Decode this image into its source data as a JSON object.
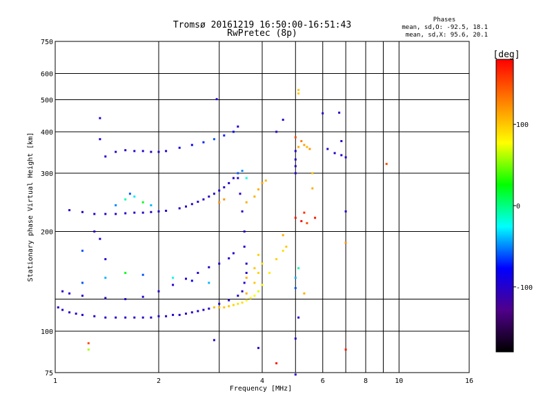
{
  "chart_data": {
    "type": "scatter",
    "title": "Tromsø 20161219 16:50:00-16:51:43",
    "subtitle": "RwPretec (8p)",
    "xlabel": "Frequency [MHz]",
    "ylabel": "Stationary phase Virtual Height [km]",
    "x_scale": "log",
    "y_scale": "log",
    "xlim": [
      1,
      16
    ],
    "ylim": [
      75,
      750
    ],
    "x_ticks": [
      1,
      2,
      4,
      6,
      8,
      10,
      16
    ],
    "x_tick_labels": [
      "1",
      "2",
      "4",
      "6",
      "8",
      "10",
      "16"
    ],
    "x_grid": [
      1,
      2,
      3,
      4,
      5,
      6,
      7,
      8,
      9,
      10,
      16
    ],
    "y_ticks": [
      75,
      100,
      200,
      300,
      400,
      500,
      600,
      750
    ],
    "y_tick_labels": [
      "75",
      "100",
      "200",
      "300",
      "400",
      "500",
      "600",
      "750"
    ],
    "y_grid": [
      75,
      100,
      125,
      200,
      300,
      400,
      500,
      600,
      750
    ],
    "grid": true,
    "stats": {
      "heading": "Phases",
      "line_o": "mean, sd,O: -92.5, 18.1",
      "line_x": "mean, sd,X:  95.6, 20.1"
    },
    "colorbar": {
      "label": "[deg]",
      "min": -180,
      "max": 180,
      "ticks": [
        100,
        0,
        -100
      ],
      "tick_labels": [
        "100",
        "0",
        "-100"
      ],
      "colors": [
        "#ff0000",
        "#ff8000",
        "#ffff00",
        "#00ff00",
        "#00ffff",
        "#0000ff",
        "#50008a",
        "#000000"
      ]
    },
    "series": [
      {
        "points": [
          [
            1.02,
            118,
            -100
          ],
          [
            1.05,
            116,
            -100
          ],
          [
            1.1,
            114,
            -100
          ],
          [
            1.15,
            113,
            -100
          ],
          [
            1.2,
            112,
            -100
          ],
          [
            1.3,
            111,
            -100
          ],
          [
            1.4,
            110,
            -100
          ],
          [
            1.5,
            110,
            -100
          ],
          [
            1.6,
            110,
            -100
          ],
          [
            1.7,
            110,
            -100
          ],
          [
            1.8,
            110,
            -100
          ],
          [
            1.9,
            110,
            -100
          ],
          [
            2.0,
            111,
            -100
          ],
          [
            2.1,
            111,
            -100
          ],
          [
            2.2,
            112,
            -100
          ],
          [
            2.3,
            112,
            -100
          ],
          [
            2.4,
            113,
            -100
          ],
          [
            2.5,
            114,
            -100
          ],
          [
            2.6,
            115,
            -100
          ],
          [
            2.7,
            116,
            -100
          ],
          [
            2.8,
            117,
            -100
          ],
          [
            2.9,
            118,
            105
          ],
          [
            3.0,
            118,
            105
          ],
          [
            3.1,
            118,
            100
          ],
          [
            3.2,
            119,
            100
          ],
          [
            3.3,
            120,
            95
          ],
          [
            3.4,
            121,
            90
          ],
          [
            3.5,
            122,
            90
          ],
          [
            3.6,
            124,
            85
          ],
          [
            3.7,
            126,
            80
          ],
          [
            3.8,
            128,
            75
          ],
          [
            3.9,
            132,
            70
          ],
          [
            4.0,
            138,
            80
          ],
          [
            3.0,
            121,
            -100
          ],
          [
            3.2,
            124,
            -100
          ],
          [
            3.4,
            128,
            -100
          ],
          [
            3.5,
            132,
            -100
          ],
          [
            3.55,
            140,
            -100
          ],
          [
            3.6,
            150,
            -100
          ],
          [
            3.6,
            160,
            -100
          ],
          [
            3.55,
            180,
            -100
          ],
          [
            3.55,
            200,
            -100
          ],
          [
            3.5,
            230,
            -100
          ],
          [
            3.45,
            260,
            -100
          ],
          [
            3.4,
            290,
            -100
          ],
          [
            1.05,
            132,
            -100
          ],
          [
            1.1,
            130,
            -100
          ],
          [
            1.2,
            128,
            -100
          ],
          [
            1.4,
            126,
            -100
          ],
          [
            1.6,
            125,
            -100
          ],
          [
            1.8,
            127,
            -100
          ],
          [
            2.0,
            132,
            -100
          ],
          [
            2.2,
            138,
            -100
          ],
          [
            2.4,
            144,
            -100
          ],
          [
            2.6,
            150,
            -100
          ],
          [
            2.8,
            156,
            -100
          ],
          [
            3.0,
            160,
            -100
          ],
          [
            3.2,
            166,
            -100
          ],
          [
            3.3,
            172,
            -100
          ],
          [
            1.2,
            140,
            -60
          ],
          [
            1.4,
            145,
            -40
          ],
          [
            1.6,
            150,
            20
          ],
          [
            1.8,
            148,
            -60
          ],
          [
            2.2,
            145,
            -20
          ],
          [
            2.5,
            142,
            -80
          ],
          [
            2.8,
            140,
            -40
          ],
          [
            3.6,
            130,
            110
          ],
          [
            3.8,
            140,
            100
          ],
          [
            3.9,
            150,
            95
          ],
          [
            4.0,
            160,
            90
          ],
          [
            4.2,
            150,
            85
          ],
          [
            4.4,
            165,
            95
          ],
          [
            4.6,
            175,
            90
          ],
          [
            4.7,
            180,
            100
          ],
          [
            4.6,
            195,
            110
          ],
          [
            3.6,
            145,
            110
          ],
          [
            3.8,
            155,
            100
          ],
          [
            3.9,
            170,
            95
          ],
          [
            1.1,
            232,
            -100
          ],
          [
            1.2,
            229,
            -100
          ],
          [
            1.3,
            226,
            -100
          ],
          [
            1.4,
            226,
            -100
          ],
          [
            1.5,
            226,
            -100
          ],
          [
            1.6,
            227,
            -100
          ],
          [
            1.7,
            228,
            -100
          ],
          [
            1.8,
            228,
            -100
          ],
          [
            1.9,
            229,
            -100
          ],
          [
            2.0,
            230,
            -100
          ],
          [
            2.1,
            231,
            -100
          ],
          [
            1.5,
            240,
            -50
          ],
          [
            1.6,
            250,
            -10
          ],
          [
            1.7,
            255,
            -30
          ],
          [
            1.8,
            245,
            20
          ],
          [
            1.9,
            240,
            -40
          ],
          [
            1.65,
            260,
            -60
          ],
          [
            2.3,
            235,
            -100
          ],
          [
            2.4,
            238,
            -100
          ],
          [
            2.5,
            242,
            -100
          ],
          [
            2.6,
            246,
            -100
          ],
          [
            2.7,
            250,
            -100
          ],
          [
            2.8,
            255,
            -100
          ],
          [
            2.9,
            260,
            -100
          ],
          [
            3.0,
            266,
            -100
          ],
          [
            3.1,
            272,
            -100
          ],
          [
            3.2,
            280,
            -100
          ],
          [
            3.3,
            290,
            -100
          ],
          [
            3.4,
            300,
            -60
          ],
          [
            3.5,
            305,
            -50
          ],
          [
            3.6,
            290,
            -20
          ],
          [
            3.6,
            245,
            110
          ],
          [
            3.8,
            255,
            110
          ],
          [
            3.9,
            268,
            110
          ],
          [
            4.0,
            280,
            115
          ],
          [
            4.1,
            285,
            105
          ],
          [
            3.0,
            245,
            120
          ],
          [
            3.1,
            250,
            120
          ],
          [
            1.4,
            337,
            -100
          ],
          [
            1.5,
            348,
            -100
          ],
          [
            1.6,
            352,
            -100
          ],
          [
            1.7,
            350,
            -100
          ],
          [
            1.8,
            350,
            -100
          ],
          [
            1.9,
            348,
            -100
          ],
          [
            2.0,
            348,
            -100
          ],
          [
            2.1,
            350,
            -100
          ],
          [
            2.3,
            358,
            -90
          ],
          [
            2.5,
            365,
            -80
          ],
          [
            2.7,
            372,
            -70
          ],
          [
            2.9,
            380,
            -60
          ],
          [
            3.1,
            390,
            -70
          ],
          [
            3.3,
            400,
            -80
          ],
          [
            3.4,
            415,
            -100
          ],
          [
            5.1,
            360,
            110
          ],
          [
            5.3,
            365,
            115
          ],
          [
            5.4,
            360,
            105
          ],
          [
            5.5,
            355,
            120
          ],
          [
            5.0,
            385,
            150
          ],
          [
            5.2,
            375,
            130
          ],
          [
            5.0,
            330,
            -100
          ],
          [
            5.0,
            315,
            -100
          ],
          [
            5.0,
            300,
            -100
          ],
          [
            5.0,
            350,
            -100
          ],
          [
            5.6,
            300,
            100
          ],
          [
            5.6,
            270,
            110
          ],
          [
            5.0,
            220,
            170
          ],
          [
            5.2,
            215,
            175
          ],
          [
            5.3,
            228,
            160
          ],
          [
            5.4,
            212,
            150
          ],
          [
            5.7,
            220,
            170
          ],
          [
            6.2,
            355,
            -100
          ],
          [
            6.5,
            345,
            -100
          ],
          [
            6.8,
            340,
            -100
          ],
          [
            7.0,
            335,
            -100
          ],
          [
            6.8,
            375,
            -100
          ],
          [
            6.0,
            455,
            -100
          ],
          [
            6.7,
            457,
            -100
          ],
          [
            4.6,
            435,
            -100
          ],
          [
            4.4,
            400,
            -100
          ],
          [
            7.0,
            230,
            -100
          ],
          [
            7.0,
            185,
            120
          ],
          [
            5.0,
            135,
            -60
          ],
          [
            5.0,
            145,
            -40
          ],
          [
            5.1,
            155,
            -10
          ],
          [
            5.3,
            130,
            110
          ],
          [
            5.1,
            110,
            -100
          ],
          [
            5.0,
            95,
            -100
          ],
          [
            5.0,
            74,
            -100
          ],
          [
            7.0,
            88,
            170
          ],
          [
            4.4,
            80,
            170
          ],
          [
            3.9,
            89,
            -100
          ],
          [
            2.9,
            94,
            -100
          ],
          [
            1.25,
            92,
            150
          ],
          [
            1.25,
            88,
            60
          ],
          [
            2.95,
            502,
            -100
          ],
          [
            5.1,
            535,
            100
          ],
          [
            5.1,
            522,
            100
          ],
          [
            9.2,
            320,
            150
          ],
          [
            1.35,
            440,
            -100
          ],
          [
            1.35,
            380,
            -100
          ],
          [
            1.3,
            200,
            -100
          ],
          [
            1.35,
            190,
            -100
          ],
          [
            1.2,
            175,
            -60
          ],
          [
            1.4,
            165,
            -100
          ]
        ]
      }
    ]
  }
}
